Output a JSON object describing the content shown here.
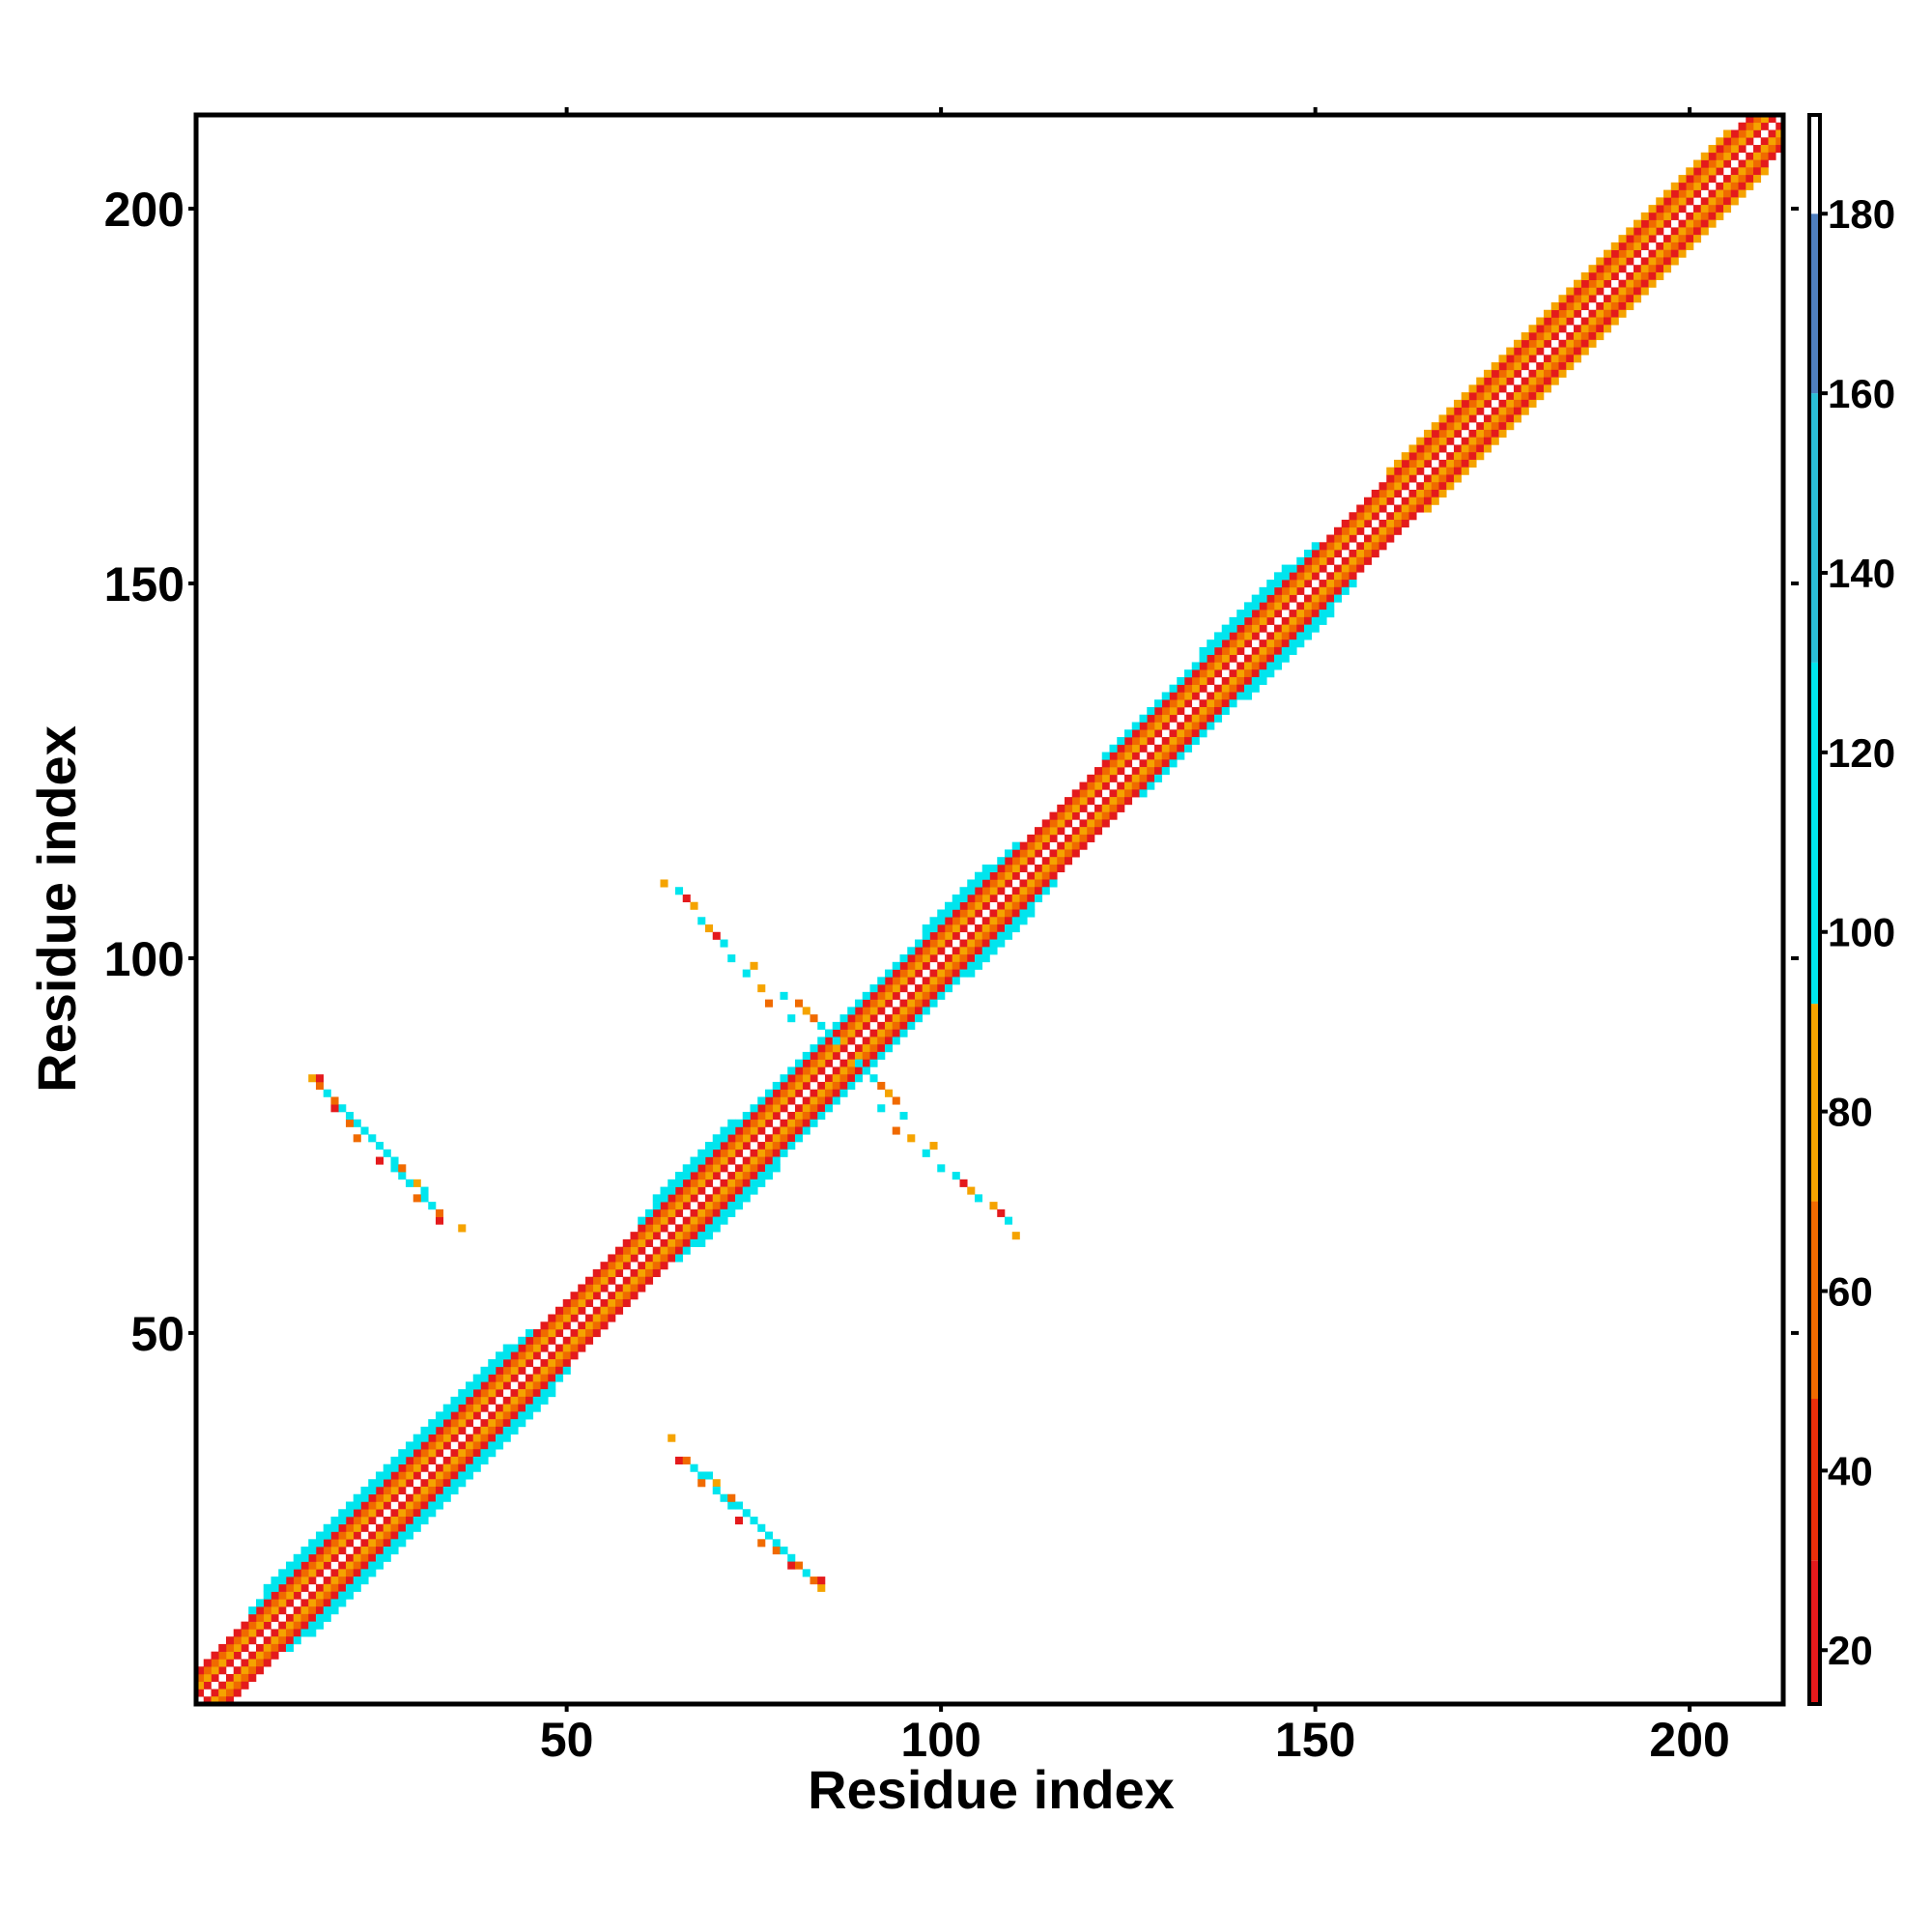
{
  "chart_data": {
    "type": "heatmap",
    "x_label": "Residue index",
    "y_label": "Residue index",
    "xlim": [
      0.5,
      212.5
    ],
    "ylim": [
      0.5,
      212.5
    ],
    "xticks": [
      50,
      100,
      150,
      200
    ],
    "yticks": [
      50,
      100,
      150,
      200
    ],
    "colorbar": {
      "lim": [
        14,
        191
      ],
      "ticks": [
        20,
        40,
        60,
        80,
        100,
        120,
        140,
        160,
        180
      ],
      "segments": [
        {
          "from": 14,
          "to": 30,
          "color": "#e41a1c"
        },
        {
          "from": 30,
          "to": 48,
          "color": "#ea2f0a"
        },
        {
          "from": 48,
          "to": 70,
          "color": "#f06a00"
        },
        {
          "from": 70,
          "to": 92,
          "color": "#f5a300"
        },
        {
          "from": 92,
          "to": 130,
          "color": "#00e5ee"
        },
        {
          "from": 130,
          "to": 160,
          "color": "#2bbfd8"
        },
        {
          "from": 160,
          "to": 180,
          "color": "#4f7fbf"
        },
        {
          "from": 180,
          "to": 191,
          "color": "#ffffff"
        }
      ]
    },
    "bands": [
      {
        "offset": 1,
        "from": 1,
        "to": 211,
        "value": 25
      },
      {
        "offset": 2,
        "from": 1,
        "to": 210,
        "value": 80
      },
      {
        "offset": 3,
        "from": 1,
        "to": 209,
        "value": 60
      },
      {
        "offset": 4,
        "from": 1,
        "to": 208,
        "value": 25
      },
      {
        "offset": 5,
        "from": 8,
        "to": 45,
        "value": 110
      },
      {
        "offset": 5,
        "from": 60,
        "to": 110,
        "value": 110
      },
      {
        "offset": 5,
        "from": 122,
        "to": 150,
        "value": 110
      },
      {
        "offset": 5,
        "from": 160,
        "to": 205,
        "value": 80
      },
      {
        "offset": 6,
        "from": 10,
        "to": 42,
        "value": 110
      },
      {
        "offset": 6,
        "from": 62,
        "to": 72,
        "value": 110
      },
      {
        "offset": 6,
        "from": 98,
        "to": 106,
        "value": 110
      },
      {
        "offset": 6,
        "from": 135,
        "to": 146,
        "value": 110
      }
    ],
    "cells": [
      [
        64,
        36,
        80
      ],
      [
        65,
        33,
        25
      ],
      [
        66,
        33,
        60
      ],
      [
        67,
        32,
        110
      ],
      [
        68,
        31,
        110
      ],
      [
        68,
        30,
        60
      ],
      [
        69,
        31,
        110
      ],
      [
        70,
        30,
        80
      ],
      [
        70,
        29,
        110
      ],
      [
        71,
        28,
        110
      ],
      [
        72,
        27,
        110
      ],
      [
        72,
        28,
        60
      ],
      [
        73,
        27,
        110
      ],
      [
        73,
        25,
        25
      ],
      [
        74,
        26,
        110
      ],
      [
        75,
        25,
        110
      ],
      [
        76,
        24,
        110
      ],
      [
        76,
        22,
        60
      ],
      [
        77,
        23,
        110
      ],
      [
        78,
        22,
        110
      ],
      [
        78,
        21,
        60
      ],
      [
        79,
        21,
        110
      ],
      [
        80,
        20,
        110
      ],
      [
        80,
        19,
        25
      ],
      [
        81,
        19,
        60
      ],
      [
        82,
        18,
        110
      ],
      [
        83,
        17,
        60
      ],
      [
        84,
        16,
        80
      ],
      [
        84,
        17,
        25
      ],
      [
        89,
        86,
        110
      ],
      [
        90,
        85,
        110
      ],
      [
        91,
        84,
        110
      ],
      [
        92,
        83,
        60
      ],
      [
        93,
        82,
        80
      ],
      [
        94,
        81,
        60
      ],
      [
        92,
        80,
        110
      ],
      [
        95,
        79,
        110
      ],
      [
        94,
        77,
        60
      ],
      [
        96,
        76,
        80
      ],
      [
        98,
        74,
        110
      ],
      [
        99,
        75,
        80
      ],
      [
        100,
        72,
        110
      ],
      [
        102,
        71,
        110
      ],
      [
        103,
        70,
        25
      ],
      [
        104,
        69,
        80
      ],
      [
        105,
        68,
        110
      ],
      [
        107,
        67,
        80
      ],
      [
        108,
        66,
        25
      ],
      [
        109,
        65,
        110
      ],
      [
        110,
        63,
        80
      ]
    ]
  }
}
